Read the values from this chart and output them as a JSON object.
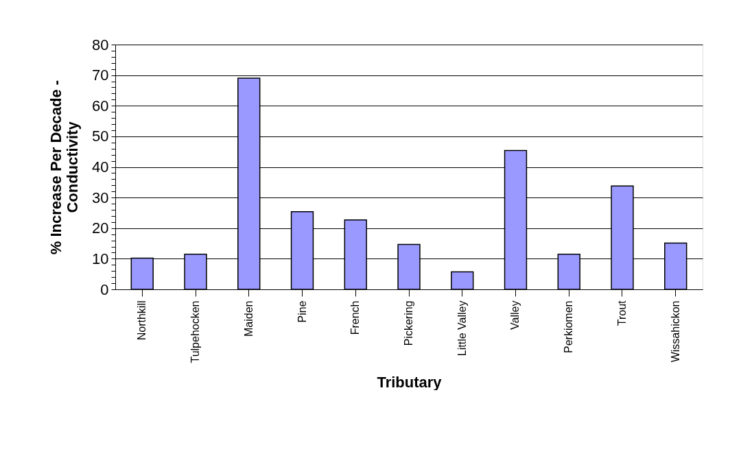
{
  "chart_data": {
    "type": "bar",
    "xlabel": "Tributary",
    "ylabel": "% Increase Per Decade -\nConductivity",
    "categories": [
      "Northkill",
      "Tulpehocken",
      "Maiden",
      "Pine",
      "French",
      "Pickering",
      "Little Valley",
      "Valley",
      "Perkiomen",
      "Trout",
      "Wissahickon"
    ],
    "values": [
      10.2,
      11.5,
      69.0,
      25.4,
      22.7,
      14.7,
      5.7,
      45.4,
      11.5,
      33.8,
      15.1
    ],
    "color": "#9999ff",
    "ylim": [
      0,
      80
    ],
    "yticks": [
      0,
      {
        "value": 2,
        "label": null
      },
      {
        "value": 4,
        "label": null
      },
      {
        "value": 6,
        "label": null
      },
      {
        "value": 8,
        "label": null
      },
      10,
      {
        "value": 12,
        "label": null
      },
      {
        "value": 14,
        "label": null
      },
      {
        "value": 16,
        "label": null
      },
      {
        "value": 18,
        "label": null
      },
      20,
      {
        "value": 22,
        "label": null
      },
      {
        "value": 24,
        "label": null
      },
      {
        "value": 26,
        "label": null
      },
      {
        "value": 28,
        "label": null
      },
      30,
      {
        "value": 32,
        "label": null
      },
      {
        "value": 34,
        "label": null
      },
      {
        "value": 36,
        "label": null
      },
      {
        "value": 38,
        "label": null
      },
      40,
      {
        "value": 42,
        "label": null
      },
      {
        "value": 44,
        "label": null
      },
      {
        "value": 46,
        "label": null
      },
      {
        "value": 48,
        "label": null
      },
      50,
      {
        "value": 52,
        "label": null
      },
      {
        "value": 54,
        "label": null
      },
      {
        "value": 56,
        "label": null
      },
      {
        "value": 58,
        "label": null
      },
      60,
      {
        "value": 62,
        "label": null
      },
      {
        "value": 64,
        "label": null
      },
      {
        "value": 66,
        "label": null
      },
      {
        "value": 68,
        "label": null
      },
      70,
      {
        "value": 72,
        "label": null
      },
      {
        "value": 74,
        "label": null
      },
      {
        "value": 76,
        "label": null
      },
      {
        "value": 78,
        "label": null
      },
      80
    ],
    "grid": "y"
  }
}
